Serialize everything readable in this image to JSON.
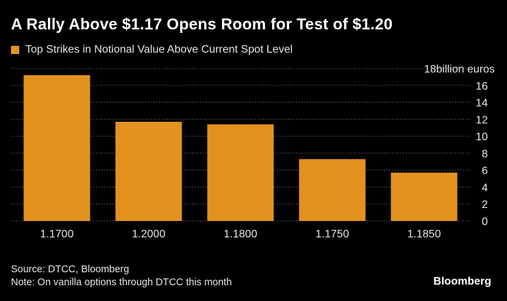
{
  "title": "A Rally Above $1.17 Opens Room for Test of $1.20",
  "legend_label": "Top Strikes in Notional Value Above Current Spot Level",
  "bar_color": "#e3921f",
  "source": "Source: DTCC, Bloomberg",
  "note": "Note: On vanilla options through DTCC this month",
  "brand": "Bloomberg",
  "chart_data": {
    "type": "bar",
    "title": "A Rally Above $1.17 Opens Room for Test of $1.20",
    "categories": [
      "1.1700",
      "1.2000",
      "1.1800",
      "1.1750",
      "1.1850"
    ],
    "series": [
      {
        "name": "Top Strikes in Notional Value Above Current Spot Level",
        "values": [
          17.2,
          11.7,
          11.4,
          7.3,
          5.7
        ]
      }
    ],
    "ylabel": "18billion euros",
    "ylim": [
      0,
      18
    ],
    "yticks": [
      "0",
      "2",
      "4",
      "6",
      "8",
      "10",
      "12",
      "14",
      "16"
    ],
    "top_tick_label": "18billion euros",
    "y_axis_position": "right",
    "grid": true
  }
}
